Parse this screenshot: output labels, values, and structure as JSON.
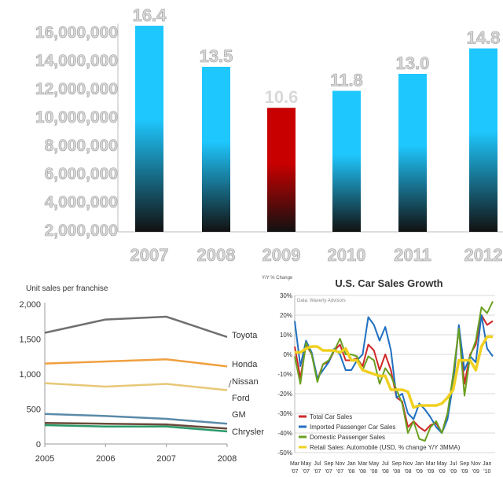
{
  "chart_data": [
    {
      "type": "bar",
      "title": "",
      "categories": [
        "2007",
        "2008",
        "2009",
        "2010",
        "2011",
        "2012"
      ],
      "values": [
        16400000,
        13500000,
        10600000,
        11800000,
        13000000,
        14800000
      ],
      "data_labels": [
        "16.4",
        "13.5",
        "10.6",
        "11.8",
        "13.0",
        "14.8"
      ],
      "highlight_index": 2,
      "y_ticks": [
        "2,000,000",
        "4,000,000",
        "6,000,000",
        "8,000,000",
        "10,000,000",
        "12,000,000",
        "14,000,000",
        "16,000,000"
      ],
      "ylim": [
        2000000,
        16000000
      ],
      "colors": {
        "bar_top": "#1ec8ff",
        "bar_bottom": "#111111",
        "highlight_top": "#c80000",
        "highlight_label": "#cc0000"
      }
    },
    {
      "type": "line",
      "ylabel": "Unit sales per franchise",
      "x": [
        "2005",
        "2006",
        "2007",
        "2008"
      ],
      "y_ticks": [
        "0",
        "500",
        "1,000",
        "1,500",
        "2,000"
      ],
      "ylim": [
        0,
        2000
      ],
      "series": [
        {
          "name": "Toyota",
          "values": [
            1590,
            1780,
            1820,
            1530
          ],
          "color": "#707070"
        },
        {
          "name": "Honda",
          "values": [
            1150,
            1180,
            1210,
            1110
          ],
          "color": "#f0a040"
        },
        {
          "name": "Nissan",
          "values": [
            870,
            820,
            860,
            770
          ],
          "color": "#e8c878"
        },
        {
          "name": "Ford",
          "values": [
            430,
            400,
            360,
            290
          ],
          "color": "#5a8aa8"
        },
        {
          "name": "GM",
          "values": [
            300,
            290,
            280,
            220
          ],
          "color": "#6a4a3a"
        },
        {
          "name": "Chrysler",
          "values": [
            270,
            250,
            250,
            180
          ],
          "color": "#2a9a6a"
        }
      ]
    },
    {
      "type": "line",
      "title": "U.S. Car Sales Growth",
      "ylabel": "Y/Y % Change",
      "note": "Data: Waverly Advisors",
      "x_ticks": [
        [
          "Mar",
          "'07"
        ],
        [
          "May",
          "'07"
        ],
        [
          "Jul",
          "'07"
        ],
        [
          "Sep",
          "'07"
        ],
        [
          "Nov",
          "'07"
        ],
        [
          "Jan",
          "'08"
        ],
        [
          "Mar",
          "'08"
        ],
        [
          "May",
          "'08"
        ],
        [
          "Jul",
          "'08"
        ],
        [
          "Sep",
          "'08"
        ],
        [
          "Nov",
          "'08"
        ],
        [
          "Jan",
          "'09"
        ],
        [
          "Mar",
          "'09"
        ],
        [
          "May",
          "'09"
        ],
        [
          "Jul",
          "'09"
        ],
        [
          "Sep",
          "'09"
        ],
        [
          "Nov",
          "'09"
        ],
        [
          "Jan",
          "'10"
        ]
      ],
      "y_ticks": [
        "30%",
        "20%",
        "10%",
        "0%",
        "-10%",
        "-20%",
        "-30%",
        "-40%",
        "-50%"
      ],
      "ylim": [
        -50,
        30
      ],
      "series": [
        {
          "name": "Total Car Sales",
          "color": "#d02828",
          "values": [
            4,
            -12,
            5,
            0,
            -13,
            -5,
            -4,
            2,
            5,
            -3,
            -3,
            -2,
            -6,
            5,
            2,
            -8,
            0,
            -8,
            -22,
            -24,
            -37,
            -34,
            -37,
            -39,
            -36,
            -35,
            -40,
            -30,
            -15,
            14,
            -15,
            0,
            5,
            20,
            15,
            17
          ]
        },
        {
          "name": "Imported Passenger Car Sales",
          "color": "#2070c0",
          "values": [
            17,
            -6,
            7,
            1,
            -12,
            -8,
            -4,
            3,
            0,
            -8,
            -8,
            -3,
            0,
            19,
            15,
            7,
            14,
            2,
            -22,
            -20,
            -30,
            -33,
            -25,
            -28,
            -32,
            -37,
            -40,
            -33,
            -15,
            15,
            -8,
            -1,
            -4,
            20,
            3,
            -1
          ]
        },
        {
          "name": "Domestic Passenger Sales",
          "color": "#6aa020",
          "values": [
            -1,
            -15,
            6,
            0,
            -14,
            -5,
            -3,
            2,
            8,
            0,
            0,
            -1,
            -8,
            -1,
            -3,
            -15,
            -7,
            -11,
            -18,
            -25,
            -40,
            -34,
            -43,
            -44,
            -37,
            -34,
            -40,
            -30,
            -10,
            13,
            -21,
            -1,
            7,
            24,
            21,
            27
          ]
        },
        {
          "name": "Retail Sales: Automobile (USD, % change Y/Y 3MMA)",
          "color": "#f0d020",
          "values": [
            1,
            1,
            3,
            4,
            4,
            2,
            2,
            2,
            1,
            3,
            -3,
            -3,
            -8,
            -9,
            -10,
            -11,
            -11,
            -18,
            -18,
            -18,
            -19,
            -27,
            -26,
            -26,
            -26,
            -26,
            -25,
            -22,
            -18,
            -3,
            -3,
            -3,
            -8,
            4,
            9,
            9
          ]
        }
      ]
    }
  ]
}
